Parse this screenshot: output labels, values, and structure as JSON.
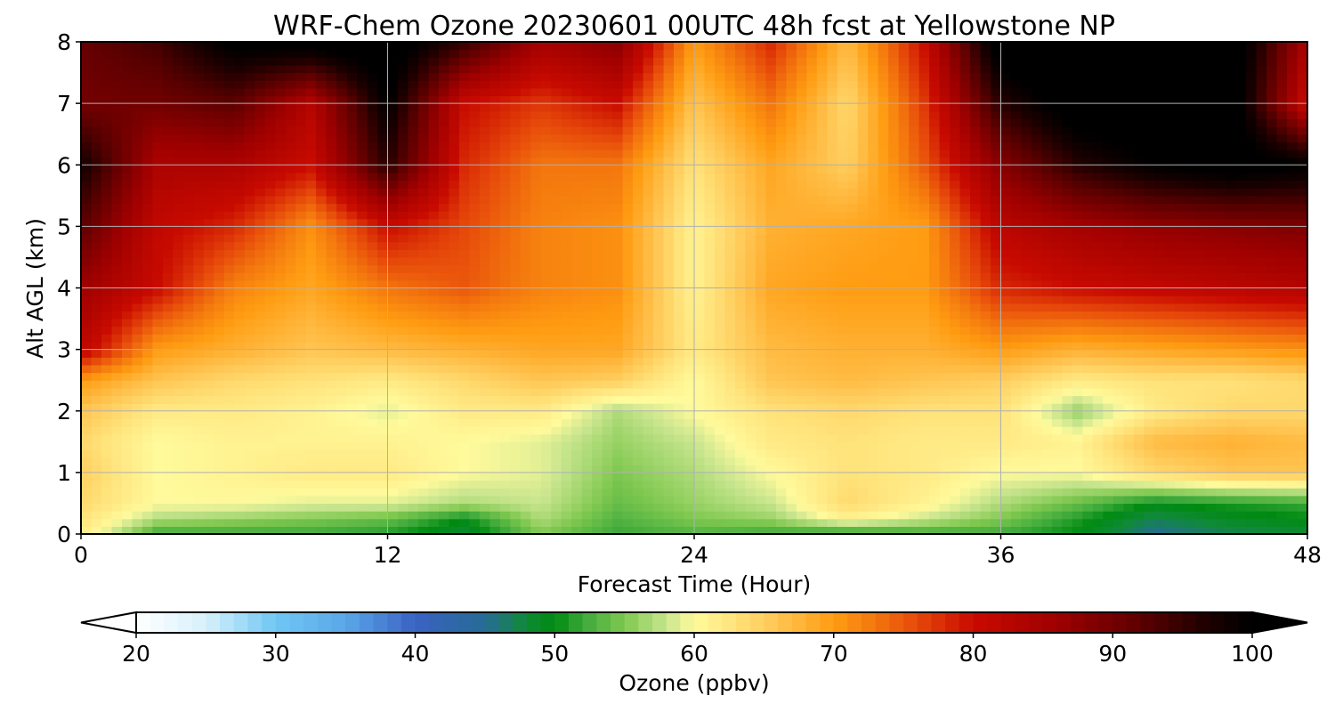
{
  "chart_data": {
    "type": "heatmap",
    "title": "WRF-Chem Ozone  20230601 00UTC 48h fcst at Yellowstone NP",
    "xlabel": "Forecast Time (Hour)",
    "ylabel": "Alt AGL (km)",
    "xlim": [
      0,
      48
    ],
    "ylim": [
      0,
      8
    ],
    "x_ticks": [
      0,
      12,
      24,
      36,
      48
    ],
    "y_ticks": [
      0,
      1,
      2,
      3,
      4,
      5,
      6,
      7,
      8
    ],
    "x_tick_labels": [
      "0",
      "12",
      "24",
      "36",
      "48"
    ],
    "y_tick_labels": [
      "0",
      "1",
      "2",
      "3",
      "4",
      "5",
      "6",
      "7",
      "8"
    ],
    "grid": true,
    "x": [
      0,
      3,
      6,
      9,
      12,
      15,
      18,
      21,
      24,
      27,
      30,
      33,
      36,
      39,
      42,
      45,
      48
    ],
    "y": [
      0,
      0.25,
      0.5,
      1,
      1.5,
      2,
      2.5,
      3,
      4,
      5,
      6,
      7,
      8
    ],
    "z": [
      [
        62,
        52,
        52,
        52,
        51,
        48,
        55,
        52,
        53,
        52,
        51,
        52,
        52,
        50,
        45,
        47,
        48
      ],
      [
        63,
        57,
        56,
        55,
        54,
        50,
        57,
        53,
        55,
        56,
        61,
        58,
        55,
        51,
        47,
        49,
        50
      ],
      [
        64,
        60,
        60,
        59,
        59,
        57,
        58,
        54,
        56,
        58,
        64,
        61,
        57,
        54,
        50,
        51,
        52
      ],
      [
        65,
        60,
        61,
        62,
        62,
        60,
        59,
        55,
        57,
        60,
        63,
        62,
        60,
        60,
        64,
        66,
        66
      ],
      [
        64,
        60,
        61,
        61,
        61,
        60,
        59,
        56,
        58,
        62,
        63,
        62,
        62,
        61,
        67,
        68,
        67
      ],
      [
        66,
        62,
        62,
        61,
        59,
        62,
        62,
        57,
        60,
        63,
        64,
        63,
        63,
        56,
        62,
        64,
        64
      ],
      [
        70,
        66,
        64,
        63,
        62,
        64,
        66,
        65,
        60,
        66,
        67,
        66,
        65,
        62,
        63,
        63,
        64
      ],
      [
        82,
        70,
        68,
        66,
        67,
        68,
        69,
        69,
        62,
        67,
        68,
        68,
        70,
        68,
        69,
        70,
        71
      ],
      [
        86,
        80,
        72,
        69,
        73,
        75,
        72,
        71,
        61,
        69,
        70,
        70,
        78,
        80,
        81,
        82,
        83
      ],
      [
        92,
        81,
        78,
        71,
        80,
        76,
        72,
        71,
        61,
        68,
        69,
        70,
        82,
        85,
        87,
        88,
        89
      ],
      [
        98,
        84,
        84,
        80,
        96,
        78,
        73,
        73,
        63,
        69,
        65,
        75,
        88,
        96,
        100,
        102,
        100
      ],
      [
        90,
        90,
        92,
        83,
        100,
        80,
        77,
        80,
        66,
        73,
        64,
        77,
        96,
        103,
        104,
        103,
        80
      ],
      [
        91,
        94,
        101,
        102,
        103,
        95,
        85,
        88,
        70,
        78,
        67,
        80,
        103,
        104,
        104,
        104,
        84
      ]
    ],
    "colorbar": {
      "label": "Ozone  (ppbv)",
      "min": 20,
      "max": 100,
      "ticks": [
        20,
        30,
        40,
        50,
        60,
        70,
        80,
        90,
        100
      ],
      "tick_labels": [
        "20",
        "30",
        "40",
        "50",
        "60",
        "70",
        "80",
        "90",
        "100"
      ],
      "extend": "both",
      "orientation": "horizontal",
      "placement": "bottom",
      "stops": [
        [
          20,
          "#ffffff"
        ],
        [
          25,
          "#d7f0fb"
        ],
        [
          30,
          "#6fc7f3"
        ],
        [
          35,
          "#5aa7e8"
        ],
        [
          40,
          "#3a62c2"
        ],
        [
          45,
          "#266c96"
        ],
        [
          48,
          "#0f8a35"
        ],
        [
          50,
          "#008a12"
        ],
        [
          52,
          "#3aa83a"
        ],
        [
          55,
          "#7fc850"
        ],
        [
          58,
          "#c8e58e"
        ],
        [
          60,
          "#fffa9c"
        ],
        [
          63,
          "#ffe27a"
        ],
        [
          66,
          "#ffc552"
        ],
        [
          70,
          "#ff9c12"
        ],
        [
          73,
          "#f3760e"
        ],
        [
          76,
          "#e6480a"
        ],
        [
          80,
          "#c80a00"
        ],
        [
          86,
          "#9e0000"
        ],
        [
          92,
          "#5c0000"
        ],
        [
          97,
          "#1a0000"
        ],
        [
          100,
          "#000000"
        ]
      ]
    }
  }
}
